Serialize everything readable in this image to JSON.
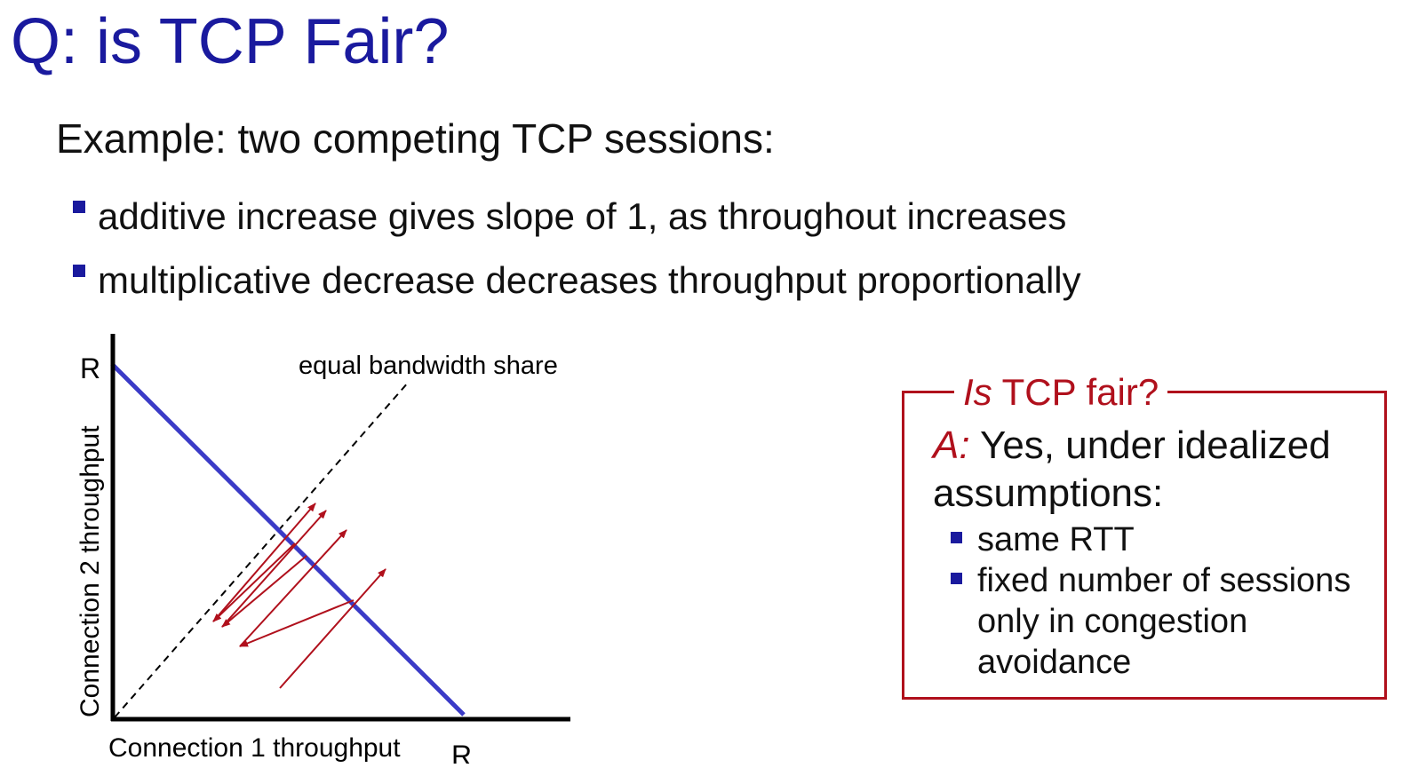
{
  "slide": {
    "title": "Q: is TCP Fair?",
    "subtitle": "Example: two competing TCP sessions:",
    "bullets": [
      "additive increase gives slope of 1, as throughout increases",
      "multiplicative decrease decreases throughput proportionally"
    ]
  },
  "diagram": {
    "y_axis_label": "Connection 2 throughput",
    "x_axis_label": "Connection 1 throughput",
    "y_max_label": "R",
    "x_max_label": "R",
    "equal_share_label": "equal bandwidth share",
    "colors": {
      "capacity_line": "#3b3bc7",
      "trajectory": "#b0101c",
      "axes": "#000000"
    }
  },
  "fair_box": {
    "legend_italic": "Is",
    "legend_rest": " TCP fair?",
    "answer_mark": "A:",
    "answer_text": " Yes, under idealized assumptions:",
    "items": [
      "same RTT",
      "fixed number of sessions only in congestion avoidance"
    ],
    "border_color": "#b0101c"
  }
}
